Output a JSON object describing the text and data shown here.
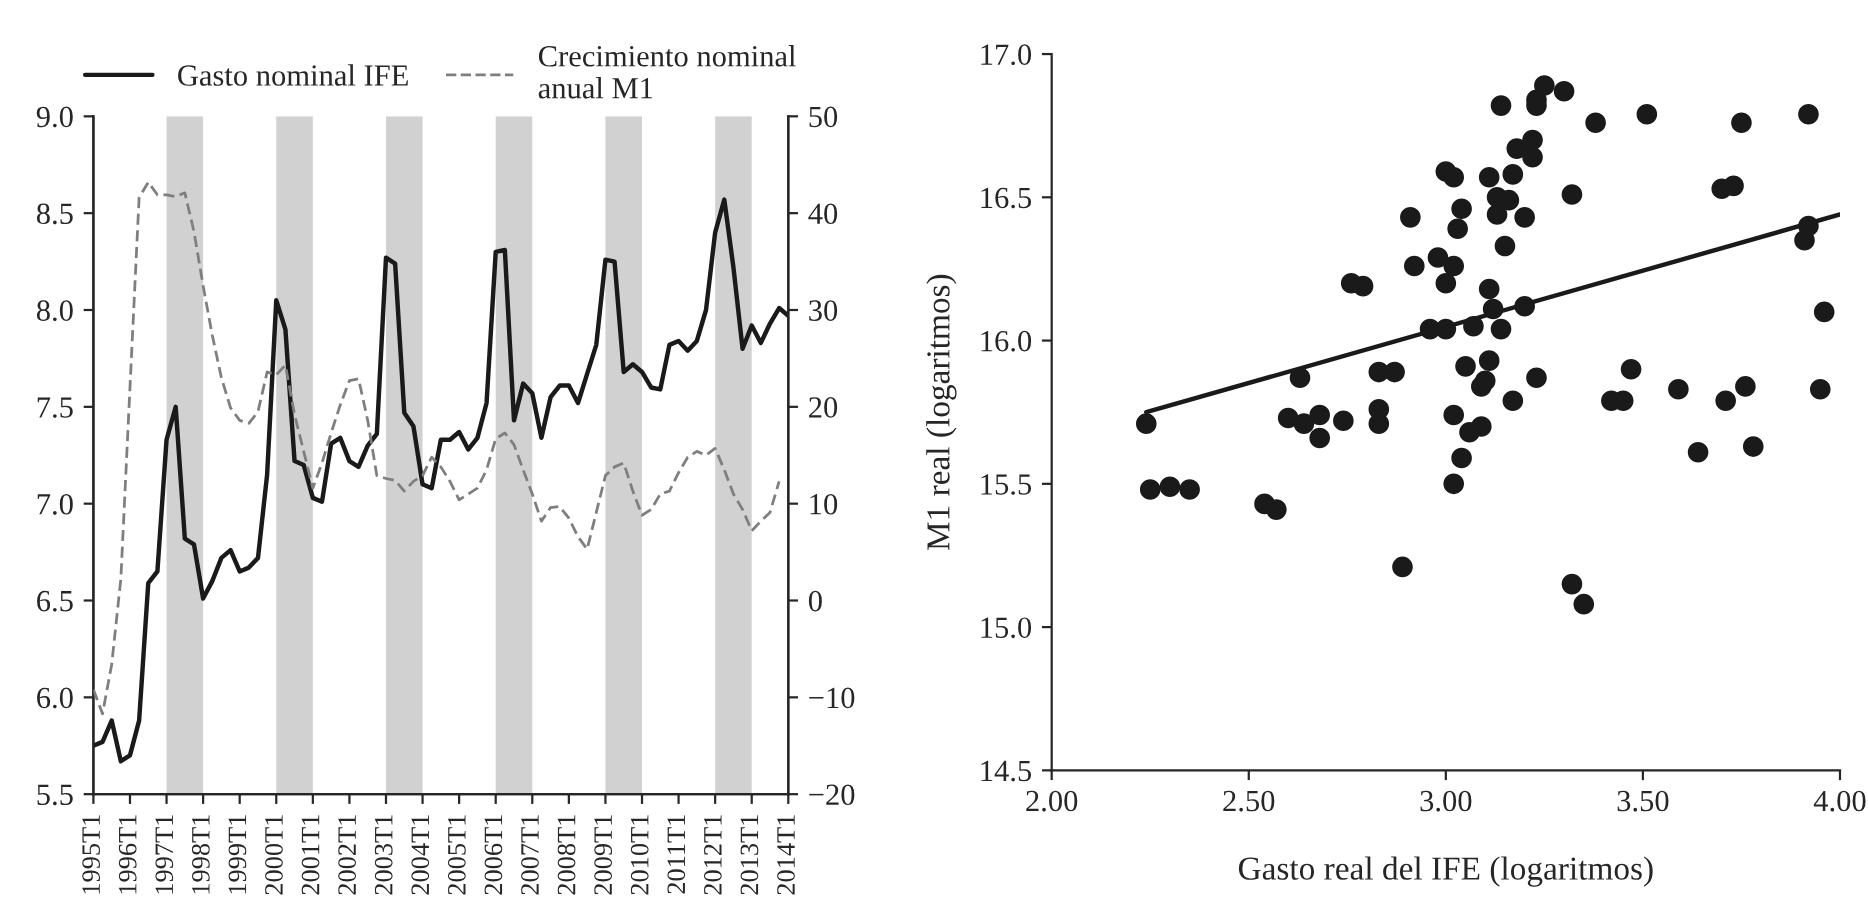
{
  "chart_data": [
    {
      "type": "line",
      "categories": [
        "1995T1",
        null,
        null,
        null,
        "1996T1",
        null,
        null,
        null,
        "1997T1",
        null,
        null,
        null,
        "1998T1",
        null,
        null,
        null,
        "1999T1",
        null,
        null,
        null,
        "2000T1",
        null,
        null,
        null,
        "2001T1",
        null,
        null,
        null,
        "2002T1",
        null,
        null,
        null,
        "2003T1",
        null,
        null,
        null,
        "2004T1",
        null,
        null,
        null,
        "2005T1",
        null,
        null,
        null,
        "2006T1",
        null,
        null,
        null,
        "2007T1",
        null,
        null,
        null,
        "2008T1",
        null,
        null,
        null,
        "2009T1",
        null,
        null,
        null,
        "2010T1",
        null,
        null,
        null,
        "2011T1",
        null,
        null,
        null,
        "2012T1",
        null,
        null,
        null,
        "2013T1",
        null,
        null,
        null,
        "2014T1"
      ],
      "series": [
        {
          "name": "Gasto nominal IFE",
          "color": "#1a1a1a",
          "line_style": "solid",
          "values": [
            5.75,
            5.77,
            5.88,
            5.67,
            5.7,
            5.88,
            6.59,
            6.65,
            7.33,
            7.5,
            6.82,
            6.79,
            6.51,
            6.6,
            6.72,
            6.76,
            6.65,
            6.67,
            6.72,
            7.15,
            8.05,
            7.9,
            7.22,
            7.2,
            7.03,
            7.01,
            7.31,
            7.34,
            7.22,
            7.19,
            7.3,
            7.36,
            8.27,
            8.24,
            7.47,
            7.4,
            7.1,
            7.08,
            7.33,
            7.33,
            7.37,
            7.28,
            7.34,
            7.52,
            8.3,
            8.31,
            7.43,
            7.62,
            7.57,
            7.34,
            7.55,
            7.61,
            7.61,
            7.52,
            7.67,
            7.82,
            8.26,
            8.25,
            7.68,
            7.72,
            7.68,
            7.6,
            7.59,
            7.82,
            7.84,
            7.79,
            7.84,
            8.0,
            8.4,
            8.57,
            8.22,
            7.8,
            7.92,
            7.83,
            7.93,
            8.01,
            7.97
          ]
        },
        {
          "name": "Crecimiento nominal\nanual M1",
          "color": "#7f7f7f",
          "line_style": "dashed",
          "axis": "y2",
          "values": [
            -9.2,
            -11.7,
            -6.6,
            2.2,
            22,
            41.6,
            43.2,
            41.9,
            41.9,
            41.7,
            42.1,
            38.1,
            32.5,
            27.4,
            23.0,
            19.9,
            18.6,
            18.3,
            19.5,
            23.6,
            23.3,
            24.3,
            19.2,
            15.4,
            11.6,
            14.2,
            17.3,
            20.2,
            22.7,
            22.9,
            18.6,
            12.9,
            12.6,
            12.4,
            11.3,
            12.3,
            12.9,
            14.8,
            13.8,
            12.3,
            10.4,
            11.0,
            11.6,
            13.5,
            16.7,
            17.3,
            16.1,
            13.5,
            11.0,
            8.2,
            9.6,
            9.7,
            8.5,
            6.6,
            5.3,
            9.1,
            12.9,
            13.8,
            14.2,
            11.3,
            8.8,
            9.4,
            11.0,
            11.3,
            13.2,
            14.8,
            15.4,
            15.0,
            15.7,
            13.5,
            11.0,
            9.4,
            7.2,
            8.2,
            9.1,
            12.3,
            null
          ]
        }
      ],
      "ylim": [
        5.5,
        9.0
      ],
      "yticks": [
        5.5,
        {
          "value": 6,
          "label": "6.0"
        },
        6.5,
        {
          "value": 7,
          "label": "7.0"
        },
        7.5,
        {
          "value": 8,
          "label": "8.0"
        },
        8.5,
        {
          "value": 9,
          "label": "9.0"
        }
      ],
      "y2lim": [
        -20,
        50
      ],
      "y2ticks": [
        {
          "value": -20,
          "label": "−20"
        },
        {
          "value": -10,
          "label": "−10"
        },
        0,
        10,
        20,
        30,
        40,
        50
      ],
      "bands": [
        {
          "axis": "x",
          "from": "1997T1",
          "to": "1998T1",
          "color": "#d1d1d1"
        },
        {
          "axis": "x",
          "from": "2000T1",
          "to": "2001T1",
          "color": "#d1d1d1"
        },
        {
          "axis": "x",
          "from": "2003T1",
          "to": "2004T1",
          "color": "#d1d1d1"
        },
        {
          "axis": "x",
          "from": "2006T1",
          "to": "2007T1",
          "color": "#d1d1d1"
        },
        {
          "axis": "x",
          "from": "2009T1",
          "to": "2010T1",
          "color": "#d1d1d1"
        },
        {
          "axis": "x",
          "from": "2012T1",
          "to": "2013T1",
          "color": "#d1d1d1"
        }
      ],
      "legend": "top",
      "grid": false
    },
    {
      "type": "scatter",
      "xlabel": "Gasto real del IFE (logaritmos)",
      "ylabel": "M1 real (logaritmos)",
      "series": [
        {
          "type": "scatter",
          "color": "#1a1a1a",
          "marker": "circle",
          "x": [
            2.24,
            2.6,
            2.64,
            2.63,
            2.68,
            2.68,
            2.74,
            2.76,
            2.79,
            2.83,
            2.87,
            2.83,
            2.83,
            2.91,
            2.92,
            2.96,
            2.98,
            3.0,
            3.0,
            3.02,
            3.0,
            3.02,
            3.04,
            3.03,
            3.05,
            3.07,
            3.02,
            3.06,
            3.09,
            3.09,
            3.1,
            3.11,
            3.11,
            3.12,
            3.11,
            3.13,
            3.13,
            3.14,
            3.14,
            3.15,
            3.16,
            3.17,
            3.18,
            3.17,
            3.2,
            3.2,
            3.22,
            3.22,
            3.23,
            3.23,
            3.23,
            3.25,
            3.3,
            3.32,
            3.38,
            3.42,
            3.45,
            3.47,
            3.51,
            3.59,
            3.64,
            3.7,
            3.73,
            3.71,
            3.75,
            3.76,
            3.78,
            3.91,
            3.92,
            3.92,
            3.95,
            3.96,
            2.25,
            2.3,
            2.35,
            2.54,
            2.57,
            2.89,
            3.02,
            3.04,
            3.32,
            3.35
          ],
          "values": [
            15.71,
            15.73,
            15.71,
            15.87,
            15.66,
            15.74,
            15.72,
            16.2,
            16.19,
            15.89,
            15.89,
            15.76,
            15.71,
            16.43,
            16.26,
            16.04,
            16.29,
            16.04,
            16.2,
            16.26,
            16.59,
            16.57,
            16.46,
            16.39,
            15.91,
            16.05,
            15.74,
            15.68,
            15.7,
            15.84,
            15.86,
            15.93,
            16.18,
            16.11,
            16.57,
            16.5,
            16.44,
            16.04,
            16.82,
            16.33,
            16.49,
            16.58,
            16.67,
            15.79,
            16.43,
            16.12,
            16.64,
            16.7,
            16.82,
            16.84,
            15.87,
            16.89,
            16.87,
            16.51,
            16.76,
            15.79,
            15.79,
            15.9,
            16.79,
            15.83,
            15.61,
            16.53,
            16.54,
            15.79,
            16.76,
            15.84,
            15.63,
            16.35,
            16.4,
            16.79,
            15.83,
            16.1,
            15.48,
            15.49,
            15.48,
            15.43,
            15.41,
            15.21,
            15.5,
            15.59,
            15.15,
            15.08
          ]
        },
        {
          "type": "line",
          "color": "#1a1a1a",
          "line_style": "solid",
          "x": [
            2.24,
            4.0
          ],
          "values": [
            15.75,
            16.44
          ]
        }
      ],
      "xlim": [
        2.0,
        4.0
      ],
      "xticks": [
        {
          "value": 2.0,
          "label": "2.00"
        },
        {
          "value": 2.5,
          "label": "2.50"
        },
        {
          "value": 3.0,
          "label": "3.00"
        },
        {
          "value": 3.5,
          "label": "3.50"
        },
        {
          "value": 4.0,
          "label": "4.00"
        }
      ],
      "ylim": [
        14.5,
        17.0
      ],
      "yticks": [
        14.5,
        {
          "value": 15,
          "label": "15.0"
        },
        15.5,
        {
          "value": 16,
          "label": "16.0"
        },
        16.5,
        {
          "value": 17,
          "label": "17.0"
        }
      ],
      "grid": false
    }
  ]
}
